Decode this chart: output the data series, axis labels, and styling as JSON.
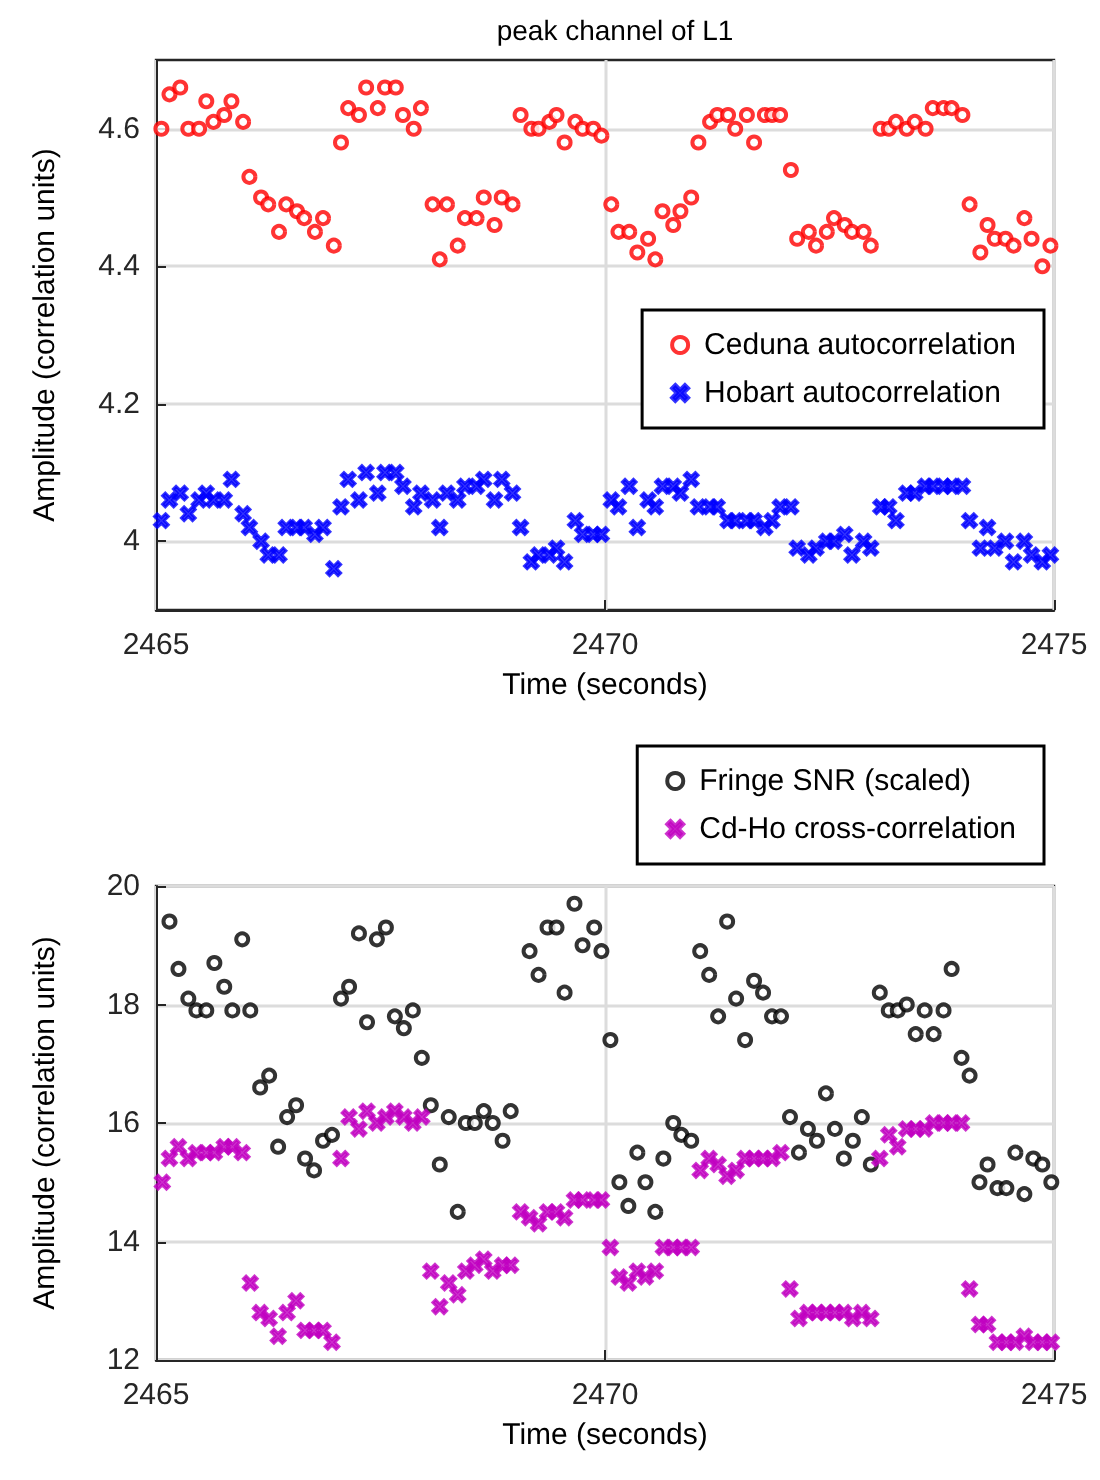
{
  "chart_data": [
    {
      "type": "scatter",
      "title": "peak channel of L1",
      "xlabel": "Time (seconds)",
      "ylabel": "Amplitude (correlation units)",
      "xlim": [
        2465,
        2475
      ],
      "xticks": [
        2465,
        2470,
        2475
      ],
      "ylim": [
        3.9,
        4.7
      ],
      "yticks": [
        4,
        4.2,
        4.4,
        4.6
      ],
      "grid": true,
      "legend": "right",
      "series": [
        {
          "name": "Ceduna autocorrelation",
          "color": "#ff0000",
          "marker": "circle",
          "x": [
            2465.06,
            2465.15,
            2465.27,
            2465.36,
            2465.48,
            2465.56,
            2465.64,
            2465.76,
            2465.84,
            2465.97,
            2466.04,
            2466.17,
            2466.25,
            2466.37,
            2466.45,
            2466.57,
            2466.65,
            2466.77,
            2466.86,
            2466.98,
            2467.06,
            2467.14,
            2467.26,
            2467.34,
            2467.47,
            2467.55,
            2467.67,
            2467.75,
            2467.87,
            2467.95,
            2468.08,
            2468.16,
            2468.24,
            2468.36,
            2468.44,
            2468.57,
            2468.65,
            2468.77,
            2468.85,
            2468.97,
            2469.06,
            2469.18,
            2469.26,
            2469.38,
            2469.46,
            2469.55,
            2469.67,
            2469.75,
            2469.87,
            2469.96,
            2470.07,
            2470.15,
            2470.27,
            2470.36,
            2470.48,
            2470.56,
            2470.64,
            2470.76,
            2470.84,
            2470.96,
            2471.04,
            2471.17,
            2471.25,
            2471.37,
            2471.45,
            2471.58,
            2471.66,
            2471.78,
            2471.86,
            2471.95,
            2472.07,
            2472.14,
            2472.27,
            2472.35,
            2472.47,
            2472.55,
            2472.67,
            2472.75,
            2472.88,
            2472.96,
            2473.07,
            2473.16,
            2473.24,
            2473.36,
            2473.45,
            2473.57,
            2473.65,
            2473.77,
            2473.86,
            2473.98,
            2474.06,
            2474.18,
            2474.26,
            2474.34,
            2474.46,
            2474.55,
            2474.67,
            2474.75,
            2474.87,
            2474.96
          ],
          "values": [
            4.6,
            4.65,
            4.66,
            4.6,
            4.6,
            4.64,
            4.61,
            4.62,
            4.64,
            4.61,
            4.53,
            4.5,
            4.49,
            4.45,
            4.49,
            4.48,
            4.47,
            4.45,
            4.47,
            4.43,
            4.58,
            4.63,
            4.62,
            4.66,
            4.63,
            4.66,
            4.66,
            4.62,
            4.6,
            4.63,
            4.49,
            4.41,
            4.49,
            4.43,
            4.47,
            4.47,
            4.5,
            4.46,
            4.5,
            4.49,
            4.62,
            4.6,
            4.6,
            4.61,
            4.62,
            4.58,
            4.61,
            4.6,
            4.6,
            4.59,
            4.49,
            4.45,
            4.45,
            4.42,
            4.44,
            4.41,
            4.48,
            4.46,
            4.48,
            4.5,
            4.58,
            4.61,
            4.62,
            4.62,
            4.6,
            4.62,
            4.58,
            4.62,
            4.62,
            4.62,
            4.54,
            4.44,
            4.45,
            4.43,
            4.45,
            4.47,
            4.46,
            4.45,
            4.45,
            4.43,
            4.6,
            4.6,
            4.61,
            4.6,
            4.61,
            4.6,
            4.63,
            4.63,
            4.63,
            4.62,
            4.49,
            4.42,
            4.46,
            4.44,
            4.44,
            4.43,
            4.47,
            4.44,
            4.4,
            4.43
          ]
        },
        {
          "name": "Hobart autocorrelation",
          "color": "#0000ff",
          "marker": "cross",
          "x": [
            2465.06,
            2465.15,
            2465.27,
            2465.36,
            2465.48,
            2465.56,
            2465.64,
            2465.76,
            2465.84,
            2465.97,
            2466.04,
            2466.17,
            2466.25,
            2466.37,
            2466.45,
            2466.57,
            2466.65,
            2466.77,
            2466.86,
            2466.98,
            2467.06,
            2467.14,
            2467.26,
            2467.34,
            2467.47,
            2467.55,
            2467.67,
            2467.75,
            2467.87,
            2467.95,
            2468.08,
            2468.16,
            2468.24,
            2468.36,
            2468.44,
            2468.57,
            2468.65,
            2468.77,
            2468.85,
            2468.97,
            2469.06,
            2469.18,
            2469.26,
            2469.38,
            2469.46,
            2469.55,
            2469.67,
            2469.75,
            2469.87,
            2469.96,
            2470.07,
            2470.15,
            2470.27,
            2470.36,
            2470.48,
            2470.56,
            2470.64,
            2470.76,
            2470.84,
            2470.96,
            2471.04,
            2471.17,
            2471.25,
            2471.37,
            2471.45,
            2471.58,
            2471.66,
            2471.78,
            2471.86,
            2471.95,
            2472.07,
            2472.14,
            2472.27,
            2472.35,
            2472.47,
            2472.55,
            2472.67,
            2472.75,
            2472.88,
            2472.96,
            2473.07,
            2473.16,
            2473.24,
            2473.36,
            2473.45,
            2473.57,
            2473.65,
            2473.77,
            2473.86,
            2473.98,
            2474.06,
            2474.18,
            2474.26,
            2474.34,
            2474.46,
            2474.55,
            2474.67,
            2474.75,
            2474.87,
            2474.96
          ],
          "values": [
            4.03,
            4.06,
            4.07,
            4.04,
            4.06,
            4.07,
            4.06,
            4.06,
            4.09,
            4.04,
            4.02,
            4.0,
            3.98,
            3.98,
            4.02,
            4.02,
            4.02,
            4.01,
            4.02,
            3.96,
            4.05,
            4.09,
            4.06,
            4.1,
            4.07,
            4.1,
            4.1,
            4.08,
            4.05,
            4.07,
            4.06,
            4.02,
            4.07,
            4.06,
            4.08,
            4.08,
            4.09,
            4.06,
            4.09,
            4.07,
            4.02,
            3.97,
            3.98,
            3.98,
            3.99,
            3.97,
            4.03,
            4.01,
            4.01,
            4.01,
            4.06,
            4.05,
            4.08,
            4.02,
            4.06,
            4.05,
            4.08,
            4.08,
            4.07,
            4.09,
            4.05,
            4.05,
            4.05,
            4.03,
            4.03,
            4.03,
            4.03,
            4.02,
            4.03,
            4.05,
            4.05,
            3.99,
            3.98,
            3.99,
            4.0,
            4.0,
            4.01,
            3.98,
            4.0,
            3.99,
            4.05,
            4.05,
            4.03,
            4.07,
            4.07,
            4.08,
            4.08,
            4.08,
            4.08,
            4.08,
            4.03,
            3.99,
            4.02,
            3.99,
            4.0,
            3.97,
            4.0,
            3.98,
            3.97,
            3.98
          ]
        }
      ]
    },
    {
      "type": "scatter",
      "xlabel": "Time (seconds)",
      "ylabel": "Amplitude (correlation units)",
      "xlim": [
        2465,
        2475
      ],
      "xticks": [
        2465,
        2470,
        2475
      ],
      "ylim": [
        12,
        20
      ],
      "yticks": [
        12,
        14,
        16,
        18,
        20
      ],
      "grid": true,
      "legend": "top",
      "series": [
        {
          "name": "Fringe SNR (scaled)",
          "color": "#000000",
          "marker": "circle",
          "x": [
            2465.15,
            2465.25,
            2465.36,
            2465.45,
            2465.56,
            2465.65,
            2465.76,
            2465.85,
            2465.96,
            2466.05,
            2466.16,
            2466.26,
            2466.36,
            2466.46,
            2466.56,
            2466.66,
            2466.76,
            2466.86,
            2466.96,
            2467.06,
            2467.15,
            2467.26,
            2467.35,
            2467.46,
            2467.56,
            2467.66,
            2467.76,
            2467.86,
            2467.96,
            2468.06,
            2468.16,
            2468.26,
            2468.36,
            2468.45,
            2468.55,
            2468.65,
            2468.75,
            2468.86,
            2468.95,
            2469.16,
            2469.26,
            2469.36,
            2469.46,
            2469.55,
            2469.66,
            2469.75,
            2469.88,
            2469.96,
            2470.06,
            2470.16,
            2470.26,
            2470.36,
            2470.45,
            2470.56,
            2470.65,
            2470.76,
            2470.85,
            2470.96,
            2471.06,
            2471.16,
            2471.26,
            2471.36,
            2471.46,
            2471.56,
            2471.66,
            2471.76,
            2471.86,
            2471.96,
            2472.06,
            2472.16,
            2472.26,
            2472.36,
            2472.46,
            2472.56,
            2472.66,
            2472.76,
            2472.86,
            2472.96,
            2473.06,
            2473.16,
            2473.26,
            2473.36,
            2473.46,
            2473.56,
            2473.66,
            2473.77,
            2473.86,
            2473.97,
            2474.06,
            2474.17,
            2474.26,
            2474.37,
            2474.47,
            2474.57,
            2474.67,
            2474.77,
            2474.87,
            2474.97
          ],
          "values": [
            19.4,
            18.6,
            18.1,
            17.9,
            17.9,
            18.7,
            18.3,
            17.9,
            19.1,
            17.9,
            16.6,
            16.8,
            15.6,
            16.1,
            16.3,
            15.4,
            15.2,
            15.7,
            15.8,
            18.1,
            18.3,
            19.2,
            17.7,
            19.1,
            19.3,
            17.8,
            17.6,
            17.9,
            17.1,
            16.3,
            15.3,
            16.1,
            14.5,
            16.0,
            16.0,
            16.2,
            16.0,
            15.7,
            16.2,
            18.9,
            18.5,
            19.3,
            19.3,
            18.2,
            19.7,
            19.0,
            19.3,
            18.9,
            17.4,
            15.0,
            14.6,
            15.5,
            15.0,
            14.5,
            15.4,
            16.0,
            15.8,
            15.7,
            18.9,
            18.5,
            17.8,
            19.4,
            18.1,
            17.4,
            18.4,
            18.2,
            17.8,
            17.8,
            16.1,
            15.5,
            15.9,
            15.7,
            16.5,
            15.9,
            15.4,
            15.7,
            16.1,
            15.3,
            18.2,
            17.9,
            17.9,
            18.0,
            17.5,
            17.9,
            17.5,
            17.9,
            18.6,
            17.1,
            16.8,
            15.0,
            15.3,
            14.9,
            14.9,
            15.5,
            14.8,
            15.4,
            15.3,
            15.0
          ]
        },
        {
          "name": "Cd-Ho cross-correlation",
          "color": "#c000c0",
          "marker": "cross",
          "x": [
            2465.07,
            2465.15,
            2465.25,
            2465.36,
            2465.45,
            2465.56,
            2465.65,
            2465.76,
            2465.85,
            2465.96,
            2466.05,
            2466.16,
            2466.26,
            2466.36,
            2466.46,
            2466.56,
            2466.66,
            2466.76,
            2466.86,
            2466.96,
            2467.06,
            2467.15,
            2467.26,
            2467.35,
            2467.46,
            2467.56,
            2467.66,
            2467.76,
            2467.86,
            2467.96,
            2468.06,
            2468.16,
            2468.26,
            2468.36,
            2468.45,
            2468.55,
            2468.65,
            2468.75,
            2468.86,
            2468.95,
            2469.06,
            2469.16,
            2469.26,
            2469.36,
            2469.46,
            2469.55,
            2469.66,
            2469.75,
            2469.88,
            2469.96,
            2470.06,
            2470.16,
            2470.26,
            2470.36,
            2470.45,
            2470.56,
            2470.65,
            2470.76,
            2470.85,
            2470.96,
            2471.06,
            2471.16,
            2471.26,
            2471.36,
            2471.46,
            2471.56,
            2471.66,
            2471.76,
            2471.86,
            2471.96,
            2472.06,
            2472.16,
            2472.26,
            2472.36,
            2472.46,
            2472.56,
            2472.66,
            2472.76,
            2472.86,
            2472.96,
            2473.06,
            2473.16,
            2473.26,
            2473.36,
            2473.46,
            2473.56,
            2473.66,
            2473.77,
            2473.86,
            2473.97,
            2474.06,
            2474.17,
            2474.26,
            2474.37,
            2474.47,
            2474.57,
            2474.67,
            2474.77,
            2474.87,
            2474.97
          ],
          "values": [
            15.0,
            15.4,
            15.6,
            15.4,
            15.5,
            15.5,
            15.5,
            15.6,
            15.6,
            15.5,
            13.3,
            12.8,
            12.7,
            12.4,
            12.8,
            13.0,
            12.5,
            12.5,
            12.5,
            12.3,
            15.4,
            16.1,
            15.9,
            16.2,
            16.0,
            16.1,
            16.2,
            16.1,
            16.0,
            16.1,
            13.5,
            12.9,
            13.3,
            13.1,
            13.5,
            13.6,
            13.7,
            13.5,
            13.6,
            13.6,
            14.5,
            14.4,
            14.3,
            14.5,
            14.5,
            14.4,
            14.7,
            14.7,
            14.7,
            14.7,
            13.9,
            13.4,
            13.3,
            13.5,
            13.4,
            13.5,
            13.9,
            13.9,
            13.9,
            13.9,
            15.2,
            15.4,
            15.3,
            15.1,
            15.2,
            15.4,
            15.4,
            15.4,
            15.4,
            15.5,
            13.2,
            12.7,
            12.8,
            12.8,
            12.8,
            12.8,
            12.8,
            12.7,
            12.8,
            12.7,
            15.4,
            15.8,
            15.6,
            15.9,
            15.9,
            15.9,
            16.0,
            16.0,
            16.0,
            16.0,
            13.2,
            12.6,
            12.6,
            12.3,
            12.3,
            12.3,
            12.4,
            12.3,
            12.3,
            12.3
          ]
        }
      ]
    }
  ]
}
